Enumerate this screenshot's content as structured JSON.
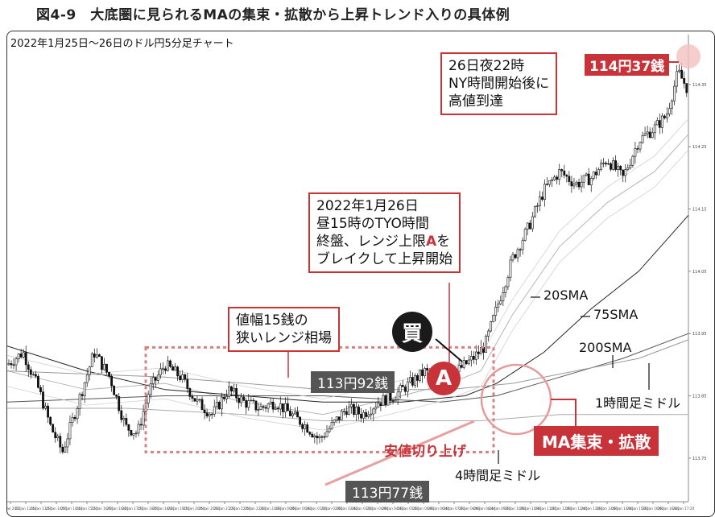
{
  "figure": {
    "title": "図4-9　大底圏に見られるMAの集束・拡散から上昇トレンド入りの具体例"
  },
  "chart_data": {
    "type": "candlestick",
    "title": "2022年1月25日～26日のドル円5分足チャート",
    "ylim": [
      113.68,
      114.43
    ],
    "y_ticks": [
      113.75,
      113.85,
      113.95,
      114.05,
      114.15,
      114.25,
      114.35
    ],
    "x_tick_labels": [
      "25 Jan 2022",
      "25 Jan 12:40",
      "25 Jan 13:20",
      "25 Jan 14:00",
      "25 Jan 14:40",
      "25 Jan 15:20",
      "25 Jan 16:00",
      "25 Jan 16:40",
      "25 Jan 17:20",
      "25 Jan 18:00",
      "25 Jan 18:40",
      "25 Jan 19:20",
      "25 Jan 20:00",
      "25 Jan 20:40",
      "25 Jan 21:20",
      "25 Jan 22:00",
      "25 Jan 22:40",
      "25 Jan 23:20",
      "26 Jan 00:00",
      "26 Jan 00:40",
      "26 Jan 01:20",
      "26 Jan 02:00",
      "26 Jan 02:40",
      "26 Jan 03:20",
      "26 Jan 04:00",
      "26 Jan 04:40",
      "26 Jan 05:20",
      "26 Jan 06:00",
      "26 Jan 06:40",
      "26 Jan 07:20",
      "26 Jan 08:00",
      "26 Jan 08:40",
      "26 Jan 09:20",
      "26 Jan 10:00",
      "26 Jan 10:40",
      "26 Jan 11:20",
      "26 Jan 12:00",
      "26 Jan 12:40",
      "26 Jan 13:20",
      "26 Jan 14:00",
      "26 Jan 14:40",
      "26 Jan 15:20",
      "26 Jan 16:00",
      "26 Jan 16:40",
      "26 Jan 17:20"
    ],
    "price_points": [
      [
        0,
        113.9
      ],
      [
        20,
        113.92
      ],
      [
        40,
        113.86
      ],
      [
        55,
        113.8
      ],
      [
        70,
        113.76
      ],
      [
        90,
        113.84
      ],
      [
        110,
        113.92
      ],
      [
        130,
        113.88
      ],
      [
        150,
        113.8
      ],
      [
        165,
        113.79
      ],
      [
        180,
        113.86
      ],
      [
        200,
        113.9
      ],
      [
        220,
        113.88
      ],
      [
        240,
        113.84
      ],
      [
        260,
        113.82
      ],
      [
        280,
        113.86
      ],
      [
        300,
        113.84
      ],
      [
        320,
        113.83
      ],
      [
        340,
        113.84
      ],
      [
        360,
        113.82
      ],
      [
        380,
        113.8
      ],
      [
        395,
        113.78
      ],
      [
        410,
        113.8
      ],
      [
        430,
        113.83
      ],
      [
        450,
        113.82
      ],
      [
        470,
        113.84
      ],
      [
        490,
        113.85
      ],
      [
        510,
        113.87
      ],
      [
        530,
        113.89
      ],
      [
        550,
        113.86
      ],
      [
        570,
        113.89
      ],
      [
        590,
        113.91
      ],
      [
        605,
        113.93
      ],
      [
        620,
        113.99
      ],
      [
        640,
        114.07
      ],
      [
        660,
        114.12
      ],
      [
        680,
        114.18
      ],
      [
        700,
        114.21
      ],
      [
        720,
        114.19
      ],
      [
        740,
        114.2
      ],
      [
        760,
        114.23
      ],
      [
        780,
        114.2
      ],
      [
        800,
        114.26
      ],
      [
        820,
        114.28
      ],
      [
        835,
        114.3
      ],
      [
        850,
        114.37
      ],
      [
        863,
        114.34
      ]
    ],
    "series": [
      {
        "name": "20SMA",
        "points": [
          [
            0,
            113.89
          ],
          [
            100,
            113.86
          ],
          [
            200,
            113.87
          ],
          [
            300,
            113.84
          ],
          [
            400,
            113.82
          ],
          [
            500,
            113.85
          ],
          [
            560,
            113.87
          ],
          [
            600,
            113.89
          ],
          [
            640,
            113.98
          ],
          [
            700,
            114.09
          ],
          [
            760,
            114.16
          ],
          [
            820,
            114.21
          ],
          [
            863,
            114.27
          ]
        ]
      },
      {
        "name": "75SMA",
        "points": [
          [
            0,
            113.93
          ],
          [
            100,
            113.89
          ],
          [
            200,
            113.86
          ],
          [
            300,
            113.85
          ],
          [
            400,
            113.84
          ],
          [
            500,
            113.84
          ],
          [
            580,
            113.85
          ],
          [
            620,
            113.87
          ],
          [
            680,
            113.92
          ],
          [
            740,
            113.99
          ],
          [
            800,
            114.05
          ],
          [
            863,
            114.14
          ]
        ]
      },
      {
        "name": "200SMA",
        "points": [
          [
            0,
            113.84
          ],
          [
            200,
            113.85
          ],
          [
            400,
            113.85
          ],
          [
            550,
            113.84
          ],
          [
            620,
            113.85
          ],
          [
            700,
            113.88
          ],
          [
            780,
            113.91
          ],
          [
            863,
            113.95
          ]
        ]
      },
      {
        "name": "1時間足ミドル",
        "points": [
          [
            0,
            113.89
          ],
          [
            200,
            113.88
          ],
          [
            400,
            113.86
          ],
          [
            560,
            113.86
          ],
          [
            640,
            113.87
          ],
          [
            720,
            113.89
          ],
          [
            800,
            113.91
          ],
          [
            863,
            113.94
          ]
        ]
      },
      {
        "name": "4時間足ミドル",
        "points": [
          [
            0,
            113.83
          ],
          [
            150,
            113.83
          ],
          [
            300,
            113.82
          ],
          [
            400,
            113.81
          ],
          [
            560,
            113.81
          ],
          [
            600,
            113.81
          ],
          [
            700,
            113.82
          ],
          [
            863,
            113.82
          ]
        ]
      }
    ]
  },
  "annotations": {
    "note_peak": [
      "26日夜22時",
      "NY時間開始後に",
      "高値到達"
    ],
    "tag_high": "114円37銭",
    "note_break": [
      "2022年1月26日",
      "昼15時のTYO時間",
      "終盤、レンジ上限",
      "A",
      "を",
      "ブレイクして上昇開始"
    ],
    "note_range": [
      "値幅15銭の",
      "狭いレンジ相場"
    ],
    "buy_label": "買",
    "a_label": "A",
    "tag_range_high": "113円92銭",
    "tag_range_low": "113円77銭",
    "raised_lows": "安値切り上げ",
    "ma_converge": "MA集束・拡散",
    "label_20sma": "20SMA",
    "label_75sma": "75SMA",
    "label_200sma": "200SMA",
    "label_1h_mid": "1時間足ミドル",
    "label_4h_mid": "4時間足ミドル"
  }
}
